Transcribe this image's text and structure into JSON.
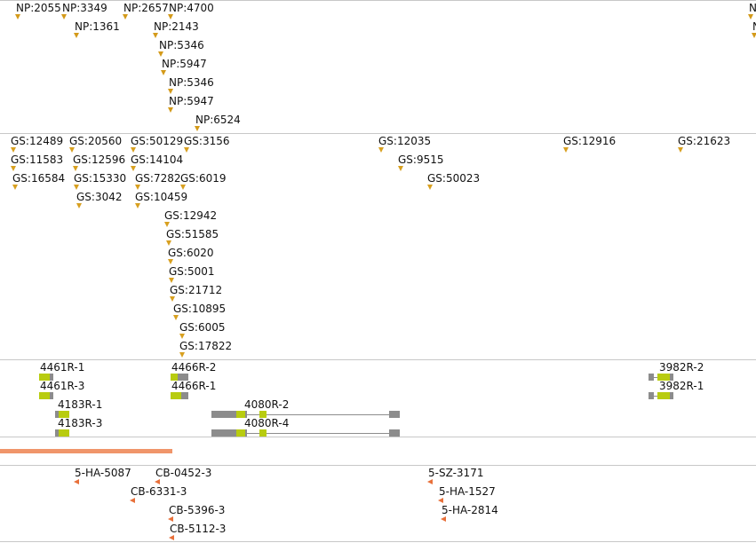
{
  "np_track": {
    "items": [
      "NP:2055",
      "NP:3349",
      "NP:2657",
      "NP:4700",
      "NP:1361",
      "NP:2143",
      "NP:5346",
      "NP:5947",
      "NP:5346",
      "NP:5947",
      "NP:6524"
    ]
  },
  "gs_track": {
    "items": [
      "GS:12489",
      "GS:20560",
      "GS:50129",
      "GS:3156",
      "GS:12035",
      "GS:12916",
      "GS:21623",
      "GS:11583",
      "GS:12596",
      "GS:14104",
      "GS:9515",
      "GS:16584",
      "GS:15330",
      "GS:7282",
      "GS:6019",
      "GS:50023",
      "GS:3042",
      "GS:10459",
      "GS:12942",
      "GS:51585",
      "GS:6020",
      "GS:5001",
      "GS:21712",
      "GS:10895",
      "GS:6005",
      "GS:17822"
    ]
  },
  "gene_track": {
    "items": [
      "4461R-1",
      "4461R-3",
      "4466R-2",
      "4466R-1",
      "4183R-1",
      "4183R-3",
      "4080R-2",
      "4080R-4",
      "3982R-2",
      "3982R-1"
    ]
  },
  "ha_track": {
    "items": [
      "5-HA-5087",
      "CB-0452-3",
      "CB-6331-3",
      "CB-5396-3",
      "CB-5112-3",
      "5-SZ-3171",
      "5-HA-1527",
      "5-HA-2814"
    ]
  },
  "colors": {
    "np_marker": "#d49a1a",
    "gs_marker": "#d8a020",
    "ha_marker": "#e8703a",
    "exon_utr": "#b8cc10",
    "exon_cds": "#8c8c8c",
    "highlight_bar": "#f0956a"
  }
}
